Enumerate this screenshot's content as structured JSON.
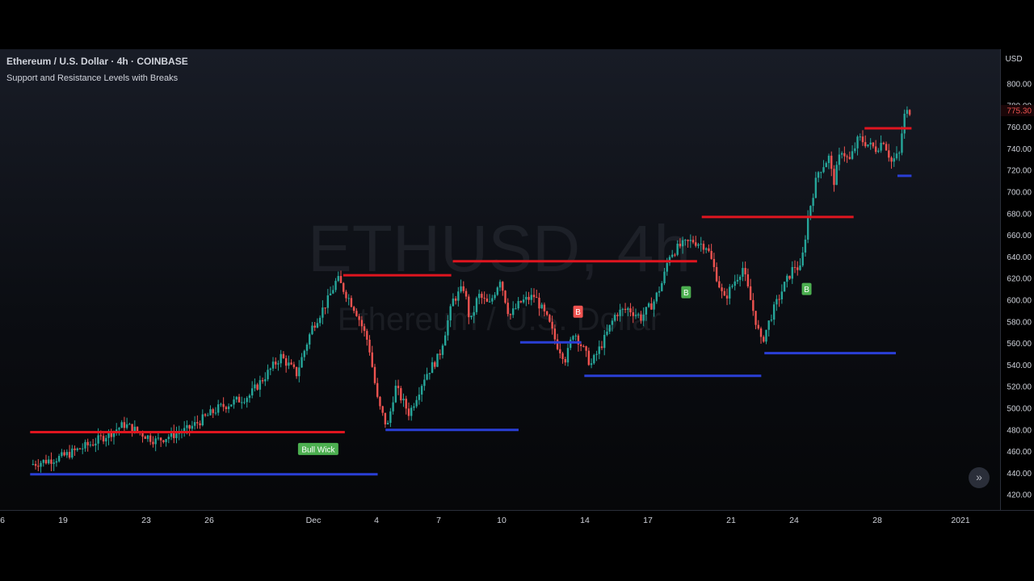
{
  "header": {
    "title": "Ethereum / U.S. Dollar · 4h · COINBASE",
    "indicator": "Support and Resistance Levels with Breaks"
  },
  "watermark": {
    "symbol": "ETHUSD, 4h",
    "name": "Ethereum / U.S. Dollar"
  },
  "price_axis": {
    "currency": "USD",
    "last_price": "775.30",
    "labels": [
      "800.00",
      "780.00",
      "760.00",
      "740.00",
      "720.00",
      "700.00",
      "680.00",
      "660.00",
      "640.00",
      "620.00",
      "600.00",
      "580.00",
      "560.00",
      "540.00",
      "520.00",
      "500.00",
      "480.00",
      "460.00",
      "440.00",
      "420.00"
    ]
  },
  "colors": {
    "up": "#26a69a",
    "down": "#ef5350",
    "resistance": "#e0151f",
    "support": "#2a3fd6",
    "break_up": "#4caf50",
    "break_down": "#ef5350"
  },
  "icons": {
    "scroll": "double-chevron-right-icon"
  },
  "chart_data": {
    "type": "candlestick",
    "title": "Ethereum / U.S. Dollar · 4h · COINBASE",
    "xlabel": "",
    "ylabel": "USD",
    "ylim": [
      408,
      820
    ],
    "x_ticks": [
      "6",
      "19",
      "23",
      "26",
      "Dec",
      "4",
      "7",
      "10",
      "14",
      "17",
      "21",
      "24",
      "28",
      "2021"
    ],
    "last_price": 775.3,
    "price_path": [
      [
        -2,
        448
      ],
      [
        0,
        455
      ],
      [
        2,
        468
      ],
      [
        4,
        485
      ],
      [
        6,
        470
      ],
      [
        8,
        480
      ],
      [
        10,
        500
      ],
      [
        12,
        512
      ],
      [
        14,
        548
      ],
      [
        15,
        532
      ],
      [
        16,
        575
      ],
      [
        17,
        600
      ],
      [
        17.6,
        620
      ],
      [
        18.2,
        605
      ],
      [
        18.8,
        590
      ],
      [
        19.6,
        560
      ],
      [
        20.2,
        505
      ],
      [
        20.8,
        482
      ],
      [
        21.3,
        520
      ],
      [
        22.2,
        495
      ],
      [
        23.2,
        530
      ],
      [
        24.1,
        548
      ],
      [
        25.0,
        600
      ],
      [
        25.7,
        612
      ],
      [
        26.1,
        578
      ],
      [
        26.6,
        605
      ],
      [
        27.3,
        595
      ],
      [
        28.0,
        620
      ],
      [
        28.6,
        585
      ],
      [
        29.3,
        598
      ],
      [
        30.2,
        604
      ],
      [
        31.1,
        580
      ],
      [
        31.6,
        560
      ],
      [
        32.2,
        545
      ],
      [
        32.7,
        572
      ],
      [
        33.3,
        555
      ],
      [
        33.8,
        540
      ],
      [
        34.7,
        565
      ],
      [
        35.4,
        588
      ],
      [
        36.2,
        592
      ],
      [
        37.0,
        584
      ],
      [
        37.8,
        598
      ],
      [
        38.4,
        618
      ],
      [
        38.8,
        642
      ],
      [
        39.5,
        650
      ],
      [
        40.3,
        655
      ],
      [
        41.2,
        650
      ],
      [
        41.7,
        628
      ],
      [
        42.3,
        600
      ],
      [
        43.0,
        618
      ],
      [
        43.5,
        630
      ],
      [
        44.0,
        600
      ],
      [
        44.7,
        560
      ],
      [
        45.3,
        585
      ],
      [
        46.1,
        612
      ],
      [
        46.8,
        632
      ],
      [
        47.2,
        628
      ],
      [
        47.7,
        680
      ],
      [
        48.3,
        718
      ],
      [
        49.0,
        732
      ],
      [
        49.3,
        708
      ],
      [
        49.8,
        740
      ],
      [
        50.3,
        728
      ],
      [
        50.9,
        750
      ],
      [
        51.4,
        745
      ],
      [
        52.0,
        740
      ],
      [
        52.5,
        748
      ],
      [
        53.0,
        728
      ],
      [
        53.5,
        735
      ],
      [
        53.8,
        770
      ],
      [
        54.1,
        775.3
      ]
    ],
    "resistance_levels": [
      {
        "from": -2.1,
        "to": 18.0,
        "price": 478
      },
      {
        "from": 17.9,
        "to": 24.8,
        "price": 623
      },
      {
        "from": 24.9,
        "to": 40.5,
        "price": 636
      },
      {
        "from": 40.8,
        "to": 50.5,
        "price": 677
      },
      {
        "from": 51.2,
        "to": 54.2,
        "price": 759
      }
    ],
    "support_levels": [
      {
        "from": -2.1,
        "to": 20.1,
        "price": 439
      },
      {
        "from": 20.6,
        "to": 29.1,
        "price": 480
      },
      {
        "from": 29.2,
        "to": 33.1,
        "price": 561
      },
      {
        "from": 33.3,
        "to": 44.6,
        "price": 530
      },
      {
        "from": 44.8,
        "to": 53.2,
        "price": 551
      },
      {
        "from": 53.3,
        "to": 54.2,
        "price": 715
      }
    ],
    "markers": [
      {
        "label": "Bull Wick",
        "time": 16.3,
        "price": 462,
        "type": "bull"
      },
      {
        "label": "B",
        "time": 32.9,
        "price": 589,
        "type": "break_down"
      },
      {
        "label": "B",
        "time": 39.8,
        "price": 607,
        "type": "break_up"
      },
      {
        "label": "B",
        "time": 47.5,
        "price": 610,
        "type": "break_up"
      }
    ]
  }
}
